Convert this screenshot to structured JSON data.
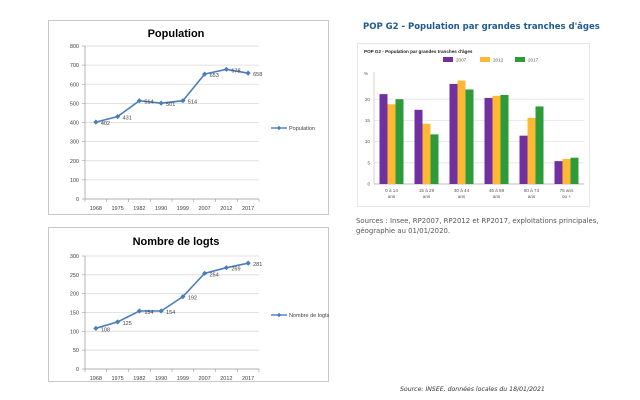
{
  "header": {
    "title": "POP G2 - Population par grandes tranches d'âges"
  },
  "sources_text": "Sources : Insee, RP2007, RP2012 et RP2017, exploitations principales, géographie au 01/01/2020.",
  "footer_source": "Source: INSEE, données locales du 18/01/2021",
  "colors": {
    "line": "#4a7ebb",
    "purple": "#7030a0",
    "orange": "#ffb833",
    "green": "#2e9b3a"
  },
  "chart_data": [
    {
      "type": "line",
      "title": "Population",
      "x": [
        "1968",
        "1975",
        "1982",
        "1990",
        "1999",
        "2007",
        "2012",
        "2017"
      ],
      "series": [
        {
          "name": "Population",
          "values": [
            402,
            431,
            514,
            501,
            514,
            653,
            678,
            658
          ]
        }
      ],
      "yticks": [
        "0",
        "100",
        "200",
        "300",
        "400",
        "500",
        "600",
        "700",
        "800"
      ],
      "ylim": [
        0,
        800
      ],
      "xlabel": "",
      "ylabel": "",
      "grid": true,
      "legend": "right",
      "data_labels": true
    },
    {
      "type": "line",
      "title": "Nombre de logts",
      "x": [
        "1968",
        "1975",
        "1982",
        "1990",
        "1999",
        "2007",
        "2012",
        "2017"
      ],
      "series": [
        {
          "name": "Nombre de logts",
          "values": [
            108,
            125,
            154,
            154,
            192,
            254,
            269,
            281
          ]
        }
      ],
      "yticks": [
        "0",
        "50",
        "100",
        "150",
        "200",
        "250",
        "300"
      ],
      "ylim": [
        0,
        300
      ],
      "xlabel": "",
      "ylabel": "",
      "grid": true,
      "legend": "right",
      "data_labels": true
    },
    {
      "type": "bar",
      "title": "POP G2 - Population par grandes tranches d'âges",
      "ylabel": "%",
      "xlabel": "",
      "categories": [
        [
          "0 à 14",
          "ans"
        ],
        [
          "15 à 29",
          "ans"
        ],
        [
          "30 à 44",
          "ans"
        ],
        [
          "45 à 59",
          "ans"
        ],
        [
          "60 à 74",
          "ans"
        ],
        [
          "75 ans",
          "ou +"
        ]
      ],
      "series": [
        {
          "name": "2007",
          "values": [
            21.2,
            17.5,
            23.6,
            20.3,
            11.4,
            5.4
          ]
        },
        {
          "name": "2012",
          "values": [
            18.8,
            14.2,
            24.4,
            20.8,
            15.6,
            5.9
          ]
        },
        {
          "name": "2017",
          "values": [
            20.0,
            11.7,
            22.3,
            21.0,
            18.3,
            6.2
          ]
        }
      ],
      "yticks": [
        "0",
        "5",
        "10",
        "15",
        "20"
      ],
      "ylim": [
        0,
        25
      ],
      "grid": true,
      "legend": "top"
    }
  ]
}
